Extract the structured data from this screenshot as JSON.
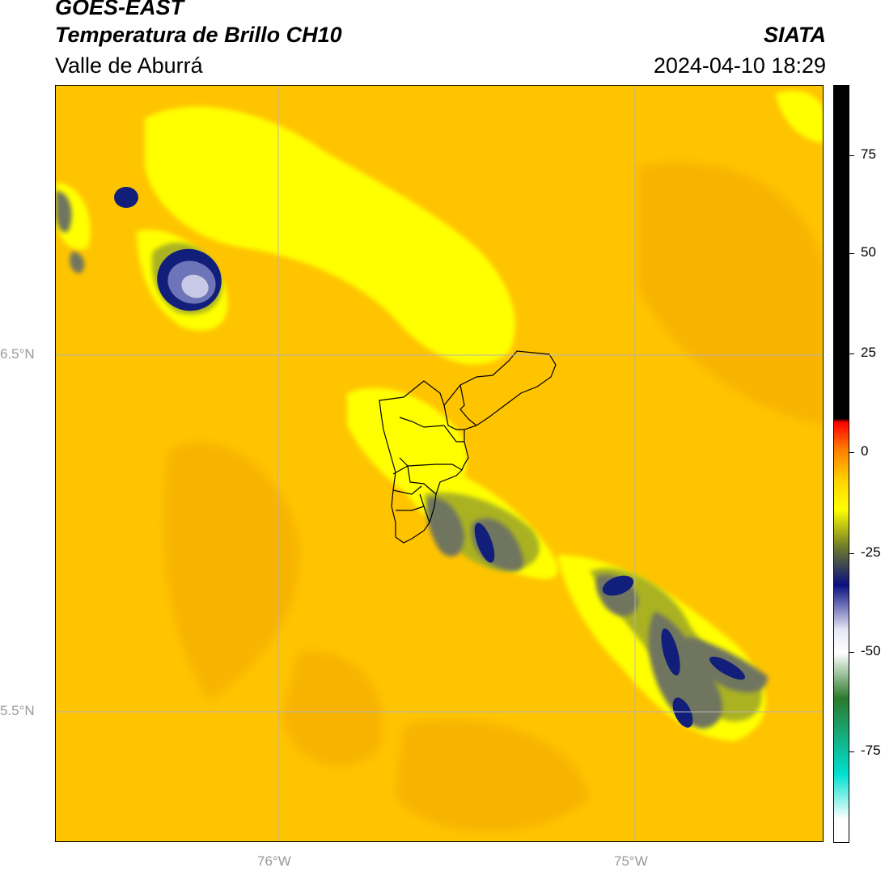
{
  "header": {
    "title": "GOES-EAST",
    "subtitle": "Temperatura de Brillo CH10",
    "region": "Valle de Aburrá",
    "organization": "SIATA",
    "datetime": "2024-04-10 18:29"
  },
  "map": {
    "lat_labels": [
      "6.5°N",
      "5.5°N"
    ],
    "lon_labels": [
      "76°W",
      "75°W"
    ],
    "colors": {
      "background": "#ffc400",
      "warm_orange": "#f7b300",
      "yellow": "#ffff00",
      "olive": "#aab224",
      "gray": "#6f7561",
      "navy": "#121f7a",
      "lavender": "#c7c9e6",
      "boundary": "#000000"
    }
  },
  "colorbar": {
    "tick_labels": [
      "75",
      "50",
      "25",
      "0",
      "-25",
      "-50",
      "-75"
    ],
    "gradient_colors": [
      "#000000",
      "#000000",
      "#ff0000",
      "#ff7a00",
      "#ffd000",
      "#ffff00",
      "#6f7a2a",
      "#0a0f80",
      "#e8e8f6",
      "#ffffff",
      "#2c7a2c",
      "#00e0d0",
      "#ffffff"
    ]
  }
}
